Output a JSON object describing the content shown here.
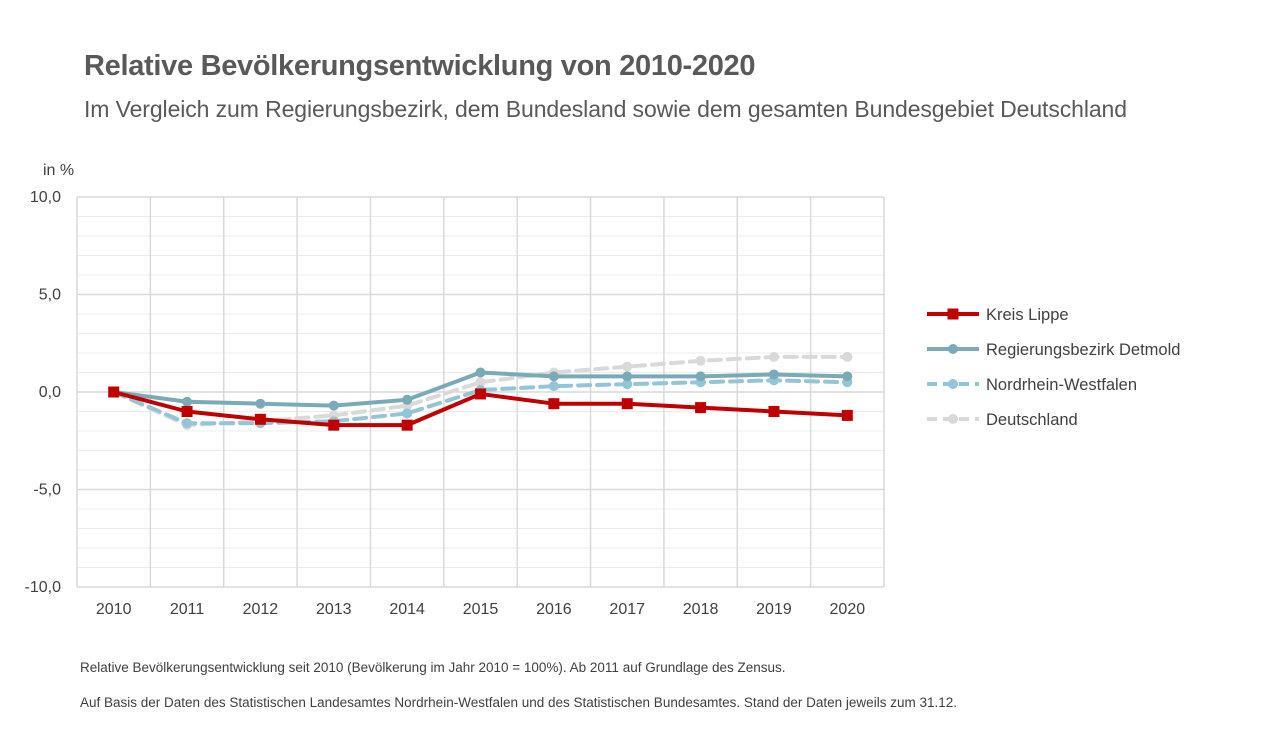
{
  "header": {
    "title": "Relative Bevölkerungsentwicklung von 2010-2020",
    "subtitle": "Im Vergleich zum Regierungsbezirk, dem Bundesland sowie dem gesamten Bundesgebiet Deutschland"
  },
  "footnotes": {
    "line1": "Relative Bevölkerungsentwicklung seit 2010 (Bevölkerung im Jahr 2010 = 100%). Ab 2011 auf Grundlage des Zensus.",
    "line2": "Auf Basis der Daten des Statistischen Landesamtes Nordrhein-Westfalen und des Statistischen Bundesamtes. Stand der Daten jeweils zum 31.12."
  },
  "chart_data": {
    "type": "line",
    "title": "Relative Bevölkerungsentwicklung von 2010-2020",
    "subtitle": "Im Vergleich zum Regierungsbezirk, dem Bundesland sowie dem gesamten Bundesgebiet Deutschland",
    "ylabel": "in %",
    "xlabel": "",
    "x": [
      "2010",
      "2011",
      "2012",
      "2013",
      "2014",
      "2015",
      "2016",
      "2017",
      "2018",
      "2019",
      "2020"
    ],
    "ylim": [
      -10,
      10
    ],
    "yticks": [
      "10,0",
      "5,0",
      "0,0",
      "-5,0",
      "-10,0"
    ],
    "grid": true,
    "legend_position": "right",
    "series": [
      {
        "name": "Deutschland",
        "color": "#d9d9d9",
        "style": "dashed",
        "marker": "circle",
        "values": [
          0.0,
          -1.7,
          -1.5,
          -1.2,
          -0.7,
          0.5,
          1.0,
          1.3,
          1.6,
          1.8,
          1.8
        ]
      },
      {
        "name": "Nordrhein-Westfalen",
        "color": "#92c5d6",
        "style": "dashed",
        "marker": "circle",
        "values": [
          0.0,
          -1.6,
          -1.6,
          -1.5,
          -1.1,
          0.1,
          0.3,
          0.4,
          0.5,
          0.6,
          0.5
        ]
      },
      {
        "name": "Regierungsbezirk Detmold",
        "color": "#7aaab8",
        "style": "solid",
        "marker": "circle",
        "values": [
          0.0,
          -0.5,
          -0.6,
          -0.7,
          -0.4,
          1.0,
          0.8,
          0.8,
          0.8,
          0.9,
          0.8
        ]
      },
      {
        "name": "Kreis Lippe",
        "color": "#c00000",
        "style": "solid",
        "marker": "square",
        "values": [
          0.0,
          -1.0,
          -1.4,
          -1.7,
          -1.7,
          -0.1,
          -0.6,
          -0.6,
          -0.8,
          -1.0,
          -1.2
        ]
      }
    ],
    "legend_order": [
      "Kreis Lippe",
      "Regierungsbezirk Detmold",
      "Nordrhein-Westfalen",
      "Deutschland"
    ]
  }
}
